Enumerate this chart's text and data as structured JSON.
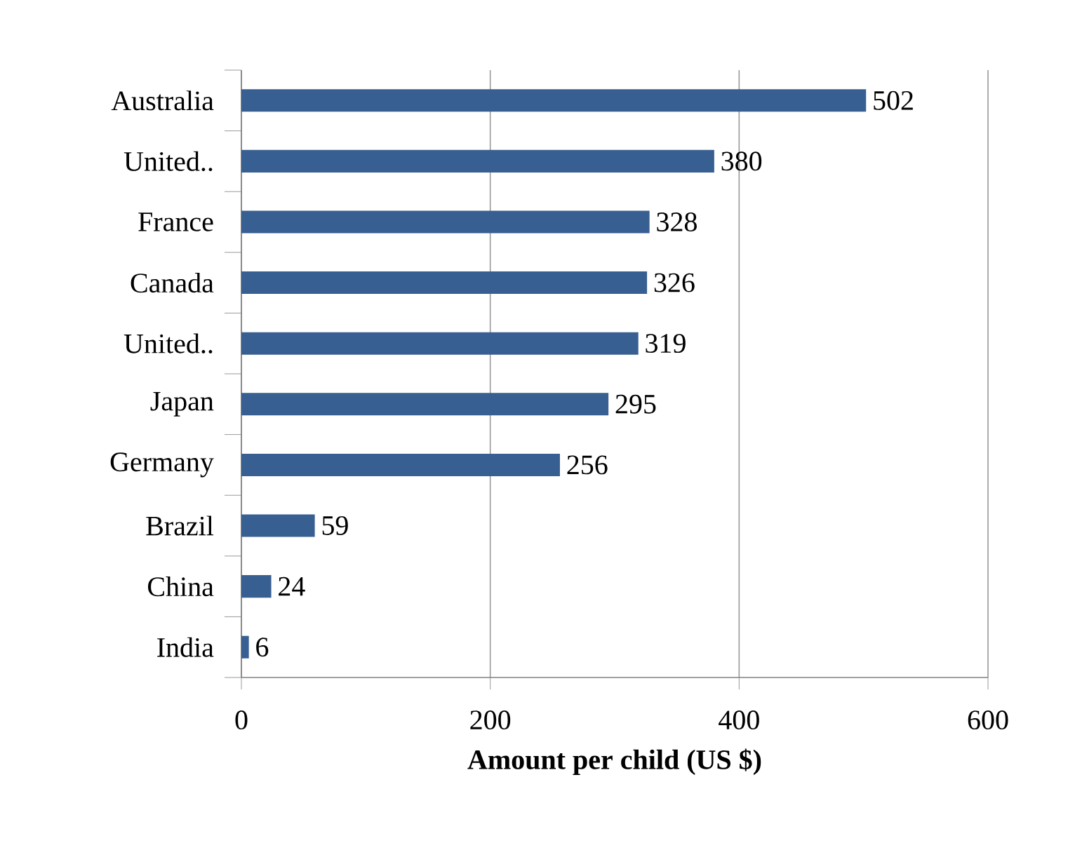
{
  "chart_data": {
    "type": "bar",
    "orientation": "horizontal",
    "categories": [
      "Australia",
      "United..",
      "France",
      "Canada",
      "United..",
      "Japan",
      "Germany",
      "Brazil",
      "China",
      "India"
    ],
    "values": [
      502,
      380,
      328,
      326,
      319,
      295,
      256,
      59,
      24,
      6
    ],
    "color": "#385f91",
    "xlabel": "Amount  per child (US $)",
    "xlim": [
      0,
      600
    ],
    "xticks": [
      0,
      200,
      400,
      600
    ],
    "grid": "x",
    "data_labels": true
  }
}
